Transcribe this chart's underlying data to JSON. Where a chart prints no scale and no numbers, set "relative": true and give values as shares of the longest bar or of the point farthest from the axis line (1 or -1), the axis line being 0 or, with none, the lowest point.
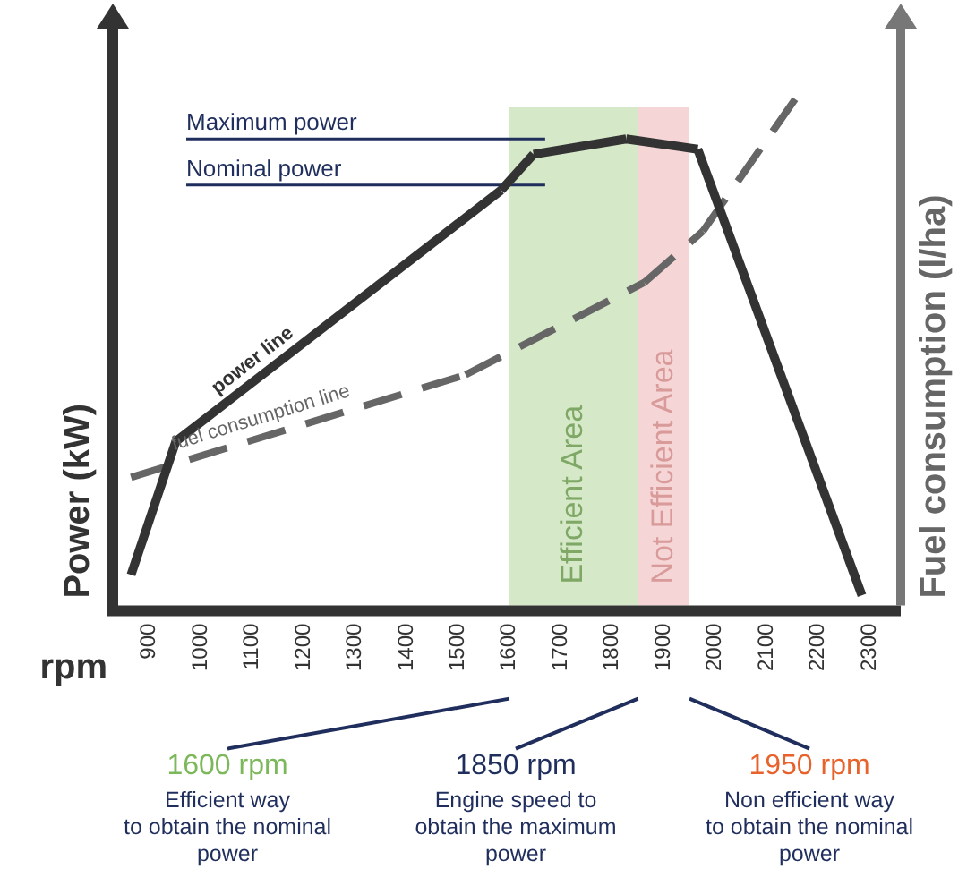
{
  "chart_data": {
    "type": "line",
    "relative": true,
    "xlabel": "rpm",
    "ylabel": "Power (kW)",
    "y2label": "Fuel consumption (l/ha)",
    "xlim": [
      840,
      2350
    ],
    "xticks": [
      900,
      1000,
      1100,
      1200,
      1300,
      1400,
      1500,
      1600,
      1700,
      1800,
      1900,
      2000,
      2100,
      2200,
      2300
    ],
    "series": [
      {
        "name": "power line",
        "color": "#333333",
        "line_style": "solid",
        "x": [
          865,
          952,
          1584,
          1647,
          1827,
          1966,
          2285
        ],
        "values": [
          0.06,
          0.32,
          0.81,
          0.88,
          0.91,
          0.89,
          0.02
        ]
      },
      {
        "name": "fuel consumption line",
        "color": "#666666",
        "line_style": "dashed",
        "x": [
          865,
          1515,
          1862,
          1976,
          2164
        ],
        "values": [
          0.25,
          0.45,
          0.63,
          0.73,
          1.0
        ]
      }
    ],
    "bands": [
      {
        "axis": "x",
        "from": 1600,
        "to": 1850,
        "label": "Efficient Area",
        "color": "#d5e8c8"
      },
      {
        "axis": "x",
        "from": 1850,
        "to": 1950,
        "label": "Not Efficient Area",
        "color": "#f5d5d5"
      }
    ],
    "ref_lines": [
      {
        "axis": "y",
        "value": 0.91,
        "label": "Maximum power",
        "color": "#1f2e5c"
      },
      {
        "axis": "y",
        "value": 0.82,
        "label": "Nominal power",
        "color": "#1f2e5c"
      }
    ],
    "annotations": [
      "1600 rpm\nEfficient way\nto obtain the nominal\npower",
      "1850 rpm\nEngine speed to\nobtain the maximum\npower",
      "1950 rpm\nNon efficient way\nto obtain the nominal\npower"
    ],
    "grid": false,
    "legend": false,
    "marker": "none"
  }
}
